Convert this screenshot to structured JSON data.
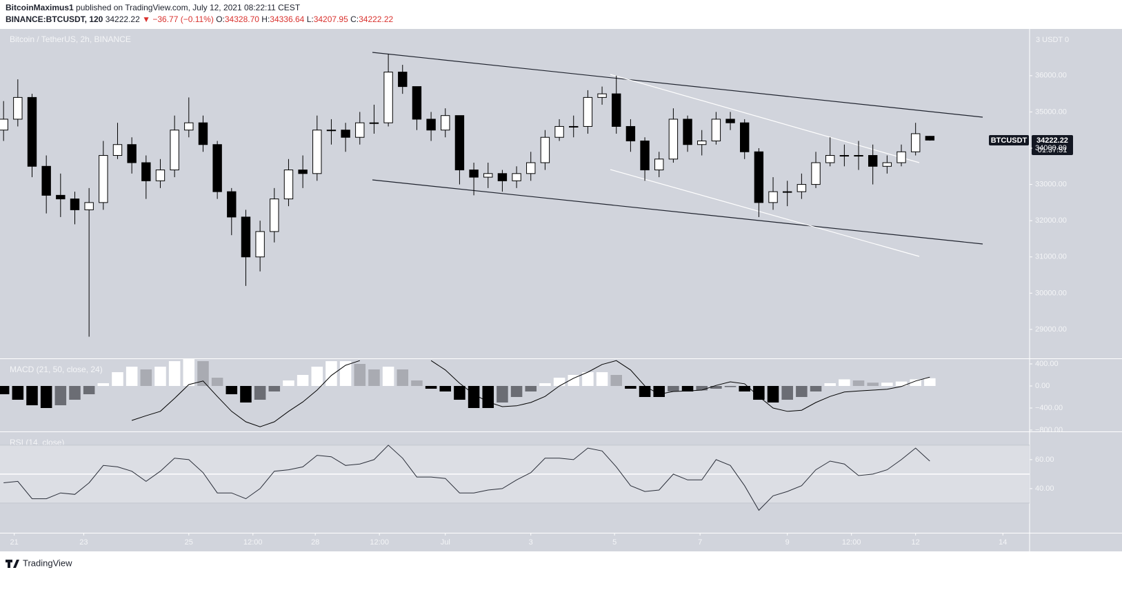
{
  "header": {
    "author": "BitcoinMaximus1",
    "published": "published on TradingView.com, July 12, 2021 08:22:11 CEST",
    "symbol": "BINANCE:BTCUSDT, 120",
    "last": "34222.22",
    "arrow": "▼",
    "change": "−36.77 (−0.11%)",
    "o_label": "O:",
    "o": "34328.70",
    "h_label": "H:",
    "h": "34336.64",
    "l_label": "L:",
    "l": "34207.95",
    "c_label": "C:",
    "c": "34222.22"
  },
  "price_axis_title": "3 USDT 0",
  "price_tag": {
    "symbol": "BTCUSDT",
    "price": "34222.22",
    "countdown": "01:37:51"
  },
  "footer": {
    "brand": "TradingView"
  },
  "chart_data": [
    {
      "type": "candlestick",
      "title": "Bitcoin / TetherUS, 2h, BINANCE",
      "x": [
        -248,
        -240,
        -232,
        -224,
        -216,
        -208,
        -200,
        -192,
        -184,
        -176,
        -168,
        -160,
        -152,
        -144,
        -136,
        -128,
        -120,
        -112,
        -104,
        -96,
        -88,
        -80,
        -72,
        -64,
        -56,
        -48,
        -40,
        -32,
        -24,
        -16,
        -8,
        0,
        8,
        16,
        24,
        32,
        40,
        48,
        56,
        64,
        72,
        80,
        88,
        96,
        104,
        112,
        120,
        128,
        136,
        144,
        152,
        160,
        168,
        176,
        184,
        192,
        200,
        208,
        216,
        224,
        232,
        240,
        248,
        256,
        264,
        272
      ],
      "open": [
        34500,
        34800,
        35400,
        33500,
        32700,
        32600,
        32300,
        32500,
        33800,
        34100,
        33600,
        33100,
        33400,
        34500,
        34700,
        34100,
        32800,
        32100,
        31000,
        31700,
        32600,
        33400,
        33300,
        34500,
        34500,
        34300,
        34700,
        34700,
        36100,
        35700,
        34800,
        34500,
        34900,
        33400,
        33200,
        33300,
        33100,
        33300,
        33600,
        34300,
        34600,
        34600,
        35400,
        35500,
        34600,
        34200,
        33400,
        33700,
        34800,
        34100,
        34200,
        34800,
        34700,
        33900,
        32500,
        32800,
        32800,
        33000,
        33600,
        33800,
        33800,
        33800,
        33500,
        33600,
        33900,
        34328.7
      ],
      "high": [
        35300,
        35900,
        35500,
        33800,
        33300,
        32800,
        32900,
        34200,
        34700,
        34300,
        33800,
        33700,
        34900,
        35400,
        34900,
        34200,
        32900,
        32300,
        32000,
        32900,
        33700,
        33800,
        34900,
        34800,
        34700,
        35000,
        35200,
        36600,
        36300,
        35700,
        35000,
        35100,
        34900,
        33600,
        33600,
        33400,
        33500,
        33900,
        34500,
        34800,
        34900,
        35600,
        35700,
        36000,
        34800,
        34300,
        33900,
        35100,
        34900,
        34500,
        35000,
        35000,
        34800,
        34000,
        33200,
        33100,
        33300,
        33900,
        34300,
        34100,
        34200,
        34100,
        33800,
        34100,
        34700,
        34336.64
      ],
      "low": [
        34200,
        34600,
        33200,
        32200,
        32100,
        31900,
        28800,
        32300,
        33700,
        33300,
        32600,
        32900,
        33200,
        34300,
        33900,
        32600,
        31600,
        30200,
        30600,
        31400,
        32400,
        32900,
        33100,
        34100,
        33900,
        34100,
        34400,
        34600,
        35500,
        34500,
        34200,
        34300,
        33000,
        32700,
        32900,
        32800,
        32900,
        33100,
        33400,
        34200,
        34300,
        34400,
        35200,
        34400,
        33900,
        33100,
        33200,
        33600,
        33900,
        33800,
        34100,
        34500,
        33700,
        32100,
        32300,
        32400,
        32600,
        32900,
        33500,
        33500,
        33400,
        33000,
        33300,
        33500,
        33800,
        34207.95
      ],
      "close": [
        34800,
        35400,
        33500,
        32700,
        32600,
        32300,
        32500,
        33800,
        34100,
        33600,
        33100,
        33400,
        34500,
        34700,
        34100,
        32800,
        32100,
        31000,
        31700,
        32600,
        33400,
        33300,
        34500,
        34500,
        34300,
        34700,
        34700,
        36100,
        35700,
        34800,
        34500,
        34900,
        33400,
        33200,
        33300,
        33100,
        33300,
        33600,
        34300,
        34600,
        34600,
        35400,
        35500,
        34600,
        34200,
        33400,
        33700,
        34800,
        34100,
        34200,
        34800,
        34700,
        33900,
        32500,
        32800,
        32800,
        33000,
        33600,
        33800,
        33800,
        33800,
        33500,
        33600,
        33900,
        34400,
        34222.22
      ],
      "up_color": "#ffffff",
      "down_color": "#000000",
      "xlim": [
        -250,
        328
      ],
      "ylim": [
        28200,
        37290
      ],
      "yticks": [
        {
          "value": 29000,
          "label": "29000.00"
        },
        {
          "value": 30000,
          "label": "30000.00"
        },
        {
          "value": 31000,
          "label": "31000.00"
        },
        {
          "value": 32000,
          "label": "32000.00"
        },
        {
          "value": 33000,
          "label": "33000.00"
        },
        {
          "value": 34000,
          "label": "34000.00"
        },
        {
          "value": 35000,
          "label": "35000.00"
        },
        {
          "value": 36000,
          "label": "36000.00"
        }
      ]
    },
    {
      "type": "macd",
      "title": "MACD (21, 50, close, 24)",
      "x": [
        -248,
        -240,
        -232,
        -224,
        -216,
        -208,
        -200,
        -192,
        -184,
        -176,
        -168,
        -160,
        -152,
        -144,
        -136,
        -128,
        -120,
        -112,
        -104,
        -96,
        -88,
        -80,
        -72,
        -64,
        -56,
        -48,
        -40,
        -32,
        -24,
        -16,
        -8,
        0,
        8,
        16,
        24,
        32,
        40,
        48,
        56,
        64,
        72,
        80,
        88,
        96,
        104,
        112,
        120,
        128,
        136,
        144,
        152,
        160,
        168,
        176,
        184,
        192,
        200,
        208,
        216,
        224,
        232,
        240,
        248,
        256,
        264,
        272
      ],
      "histogram": [
        -150,
        -250,
        -350,
        -400,
        -350,
        -250,
        -150,
        50,
        250,
        350,
        300,
        350,
        450,
        500,
        450,
        150,
        -150,
        -300,
        -250,
        -100,
        100,
        200,
        350,
        450,
        450,
        400,
        300,
        350,
        300,
        100,
        -50,
        -100,
        -250,
        -400,
        -400,
        -300,
        -200,
        -100,
        50,
        150,
        200,
        250,
        250,
        200,
        -50,
        -200,
        -200,
        -100,
        -100,
        -80,
        -50,
        -20,
        -100,
        -250,
        -300,
        -250,
        -200,
        -100,
        50,
        120,
        100,
        60,
        60,
        80,
        120,
        140
      ],
      "macd": [
        null,
        null,
        null,
        null,
        null,
        null,
        null,
        null,
        null,
        -625,
        -540,
        -460,
        -225,
        25,
        90,
        -190,
        -460,
        -650,
        -740,
        -650,
        -460,
        -290,
        -75,
        190,
        375,
        460,
        null,
        null,
        null,
        null,
        460,
        290,
        50,
        -150,
        -290,
        -375,
        -360,
        -300,
        -190,
        0,
        140,
        250,
        390,
        460,
        290,
        0,
        -150,
        -100,
        -90,
        -75,
        10,
        75,
        40,
        -190,
        -400,
        -460,
        -440,
        -300,
        -190,
        -110,
        -90,
        -75,
        -60,
        -10,
        90,
        160
      ],
      "colors": {
        "pos_up": "#ffffff",
        "pos_down": "#a9abb2",
        "neg_down": "#000000",
        "neg_up": "#6b6d74",
        "line": "#000000"
      },
      "xlim": [
        -250,
        328
      ],
      "ylim": [
        -825,
        487.5
      ],
      "yticks": [
        {
          "value": 400,
          "label": "400.00"
        },
        {
          "value": 0,
          "label": "0.00"
        },
        {
          "value": -400,
          "label": "−400.00"
        },
        {
          "value": -800,
          "label": "−800.00"
        }
      ]
    },
    {
      "type": "rsi",
      "title": "RSI (14, close)",
      "x": [
        -248,
        -240,
        -232,
        -224,
        -216,
        -208,
        -200,
        -192,
        -184,
        -176,
        -168,
        -160,
        -152,
        -144,
        -136,
        -128,
        -120,
        -112,
        -104,
        -96,
        -88,
        -80,
        -72,
        -64,
        -56,
        -48,
        -40,
        -32,
        -24,
        -16,
        -8,
        0,
        8,
        16,
        24,
        32,
        40,
        48,
        56,
        64,
        72,
        80,
        88,
        96,
        104,
        112,
        120,
        128,
        136,
        144,
        152,
        160,
        168,
        176,
        184,
        192,
        200,
        208,
        216,
        224,
        232,
        240,
        248,
        256,
        264,
        272
      ],
      "values": [
        44,
        45,
        33,
        33,
        37,
        36,
        44,
        56,
        55,
        52,
        45,
        52,
        61,
        60,
        51,
        37,
        37,
        33,
        40,
        52,
        53,
        55,
        63,
        62,
        56,
        57,
        60,
        70,
        61,
        48,
        48,
        47,
        37,
        37,
        39,
        40,
        46,
        51,
        61,
        61,
        60,
        68,
        66,
        55,
        42,
        38,
        39,
        50,
        46,
        46,
        60,
        56,
        42,
        25,
        35,
        38,
        42,
        53,
        59,
        57,
        49,
        50,
        53,
        60,
        68,
        59
      ],
      "color": "#2a2e39",
      "band": [
        30,
        70
      ],
      "midline": 50,
      "xlim": [
        -250,
        328
      ],
      "ylim": [
        9.5,
        79
      ],
      "yticks": [
        {
          "value": 60,
          "label": "60.00"
        },
        {
          "value": 40,
          "label": "40.00"
        }
      ],
      "xticks": [
        {
          "value": -242,
          "label": "21"
        },
        {
          "value": -203,
          "label": "23"
        },
        {
          "value": -144,
          "label": "25"
        },
        {
          "value": -108,
          "label": "12:00"
        },
        {
          "value": -73,
          "label": "28"
        },
        {
          "value": -37,
          "label": "12:00"
        },
        {
          "value": 0,
          "label": "Jul"
        },
        {
          "value": 48,
          "label": "3"
        },
        {
          "value": 95,
          "label": "5"
        },
        {
          "value": 143,
          "label": "7"
        },
        {
          "value": 192,
          "label": "9"
        },
        {
          "value": 228,
          "label": "12:00"
        },
        {
          "value": 264,
          "label": "12"
        },
        {
          "value": 313,
          "label": "14"
        }
      ]
    }
  ]
}
